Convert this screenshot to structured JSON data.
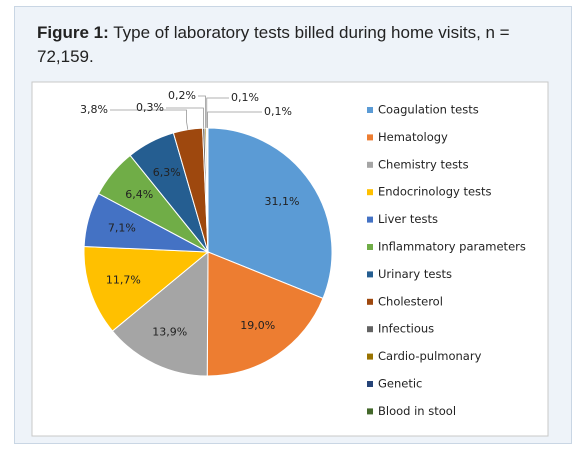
{
  "chart_data": {
    "type": "pie",
    "title_prefix": "Figure 1:",
    "title": "Type of laboratory tests billed during home visits, n = 72,159.",
    "categories": [
      "Coagulation tests",
      "Hematology",
      "Chemistry tests",
      "Endocrinology tests",
      "Liver tests",
      "Inflammatory parameters",
      "Urinary tests",
      "Cholesterol",
      "Infectious",
      "Cardio-pulmonary",
      "Genetic",
      "Blood in stool"
    ],
    "values": [
      31.1,
      19.0,
      13.9,
      11.7,
      7.1,
      6.4,
      6.3,
      3.8,
      0.3,
      0.2,
      0.1,
      0.1
    ],
    "value_labels": [
      "31,1%",
      "19,0%",
      "13,9%",
      "11,7%",
      "7,1%",
      "6,4%",
      "6,3%",
      "3,8%",
      "0,3%",
      "0,2%",
      "0,1%",
      "0,1%"
    ],
    "colors": [
      "#5b9bd5",
      "#ed7d31",
      "#a5a5a5",
      "#ffc000",
      "#4472c4",
      "#70ad47",
      "#255e91",
      "#9e480e",
      "#636363",
      "#997300",
      "#264478",
      "#43682b"
    ],
    "legend": "right"
  }
}
